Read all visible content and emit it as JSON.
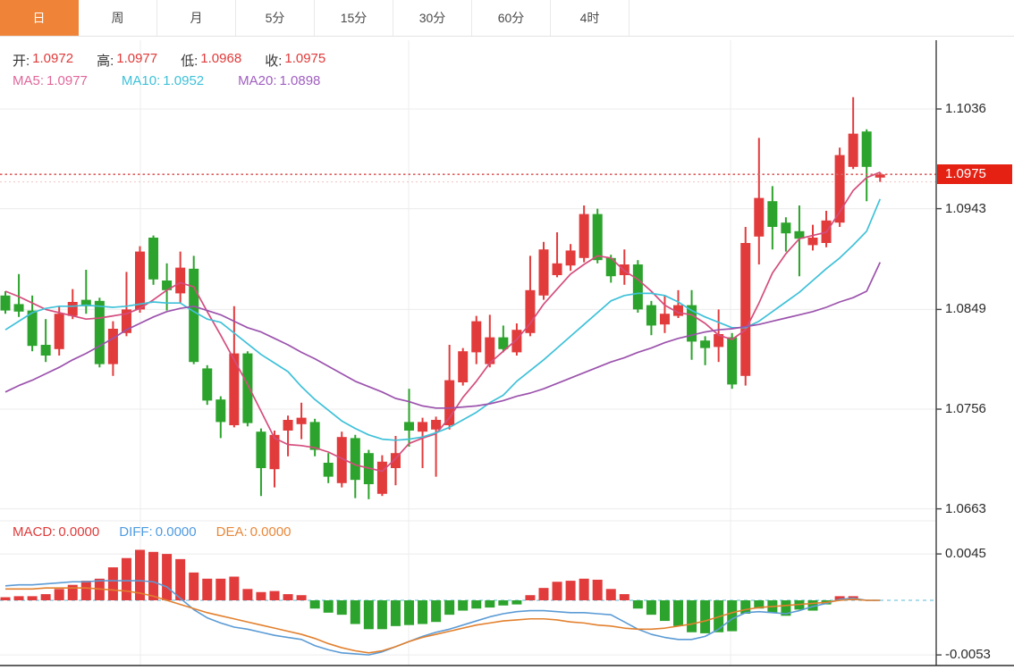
{
  "tabs": {
    "items": [
      {
        "label": "日",
        "active": true
      },
      {
        "label": "周",
        "active": false
      },
      {
        "label": "月",
        "active": false
      },
      {
        "label": "5分",
        "active": false
      },
      {
        "label": "15分",
        "active": false
      },
      {
        "label": "30分",
        "active": false
      },
      {
        "label": "60分",
        "active": false
      },
      {
        "label": "4时",
        "active": false
      }
    ],
    "active_bg": "#ef8438"
  },
  "legends": {
    "ohlc": {
      "label_color": "#333333",
      "value_color": "#e03a3a",
      "items": [
        {
          "label": "开:",
          "value": "1.0972"
        },
        {
          "label": "高:",
          "value": "1.0977"
        },
        {
          "label": "低:",
          "value": "1.0968"
        },
        {
          "label": "收:",
          "value": "1.0975"
        }
      ]
    },
    "ma": {
      "items": [
        {
          "label": "MA5:",
          "value": "1.0977",
          "color": "#e0679b"
        },
        {
          "label": "MA10:",
          "value": "1.0952",
          "color": "#3fc1d9"
        },
        {
          "label": "MA20:",
          "value": "1.0898",
          "color": "#a05fc0"
        }
      ]
    },
    "macd": {
      "items": [
        {
          "label": "MACD:",
          "value": "0.0000",
          "color": "#e03a3a"
        },
        {
          "label": "DIFF:",
          "value": "0.0000",
          "color": "#4f9be0"
        },
        {
          "label": "DEA:",
          "value": "0.0000",
          "color": "#e8883a"
        }
      ]
    }
  },
  "price_axis": {
    "ticks": [
      "1.1036",
      "1.0943",
      "1.0849",
      "1.0756",
      "1.0663"
    ],
    "tick_values": [
      1.1036,
      1.0943,
      1.0849,
      1.0756,
      1.0663
    ],
    "tag": {
      "text": "1.0975",
      "value": 1.0975,
      "bg": "#e42113",
      "fg": "#ffffff"
    }
  },
  "macd_axis": {
    "ticks": [
      "0.0045",
      "-0.0053"
    ],
    "tick_values": [
      0.0045,
      -0.0053
    ]
  },
  "colors": {
    "up": "#e23b3c",
    "down": "#2ca32c",
    "ma5": "#d44d7d",
    "ma10": "#3fc1d9",
    "ma20": "#9c53ad",
    "diff_line": "#5b9bd5",
    "dea_line": "#e2802e",
    "grid": "#ececec",
    "axis_line": "#3c3c3c",
    "zero_dash": "#8fd2e6",
    "last_price_line": "#dd6060"
  },
  "chart_data": [
    {
      "type": "candlestick",
      "panel": "price",
      "title": "",
      "ylabel": "",
      "ylim": [
        1.0655,
        1.11
      ],
      "y_ticks": [
        1.1036,
        1.0943,
        1.0849,
        1.0756,
        1.0663
      ],
      "vgrid_x": [
        157,
        457,
        817
      ],
      "reference_lines": [
        {
          "name": "last-price",
          "value": 1.0975,
          "style": "dotted",
          "color": "#dd6060"
        },
        {
          "name": "session-low",
          "value": 1.0968,
          "style": "dotted",
          "color": "#e89a9a"
        }
      ],
      "candles_ohlc": [
        [
          1.0862,
          1.0866,
          1.0845,
          1.0848
        ],
        [
          1.0854,
          1.0882,
          1.0842,
          1.0847
        ],
        [
          1.0848,
          1.0862,
          1.081,
          1.0815
        ],
        [
          1.0816,
          1.084,
          1.08,
          1.0806
        ],
        [
          1.0812,
          1.0852,
          1.0806,
          1.0845
        ],
        [
          1.0843,
          1.0868,
          1.084,
          1.0856
        ],
        [
          1.0858,
          1.0886,
          1.0845,
          1.0852
        ],
        [
          1.0857,
          1.086,
          1.0795,
          1.0798
        ],
        [
          1.0798,
          1.0838,
          1.0787,
          1.0831
        ],
        [
          1.0827,
          1.0884,
          1.0824,
          1.0849
        ],
        [
          1.0849,
          1.0908,
          1.0846,
          1.0903
        ],
        [
          1.0916,
          1.0918,
          1.0872,
          1.0877
        ],
        [
          1.0876,
          1.0892,
          1.0848,
          1.0867
        ],
        [
          1.0864,
          1.0903,
          1.0855,
          1.0888
        ],
        [
          1.0887,
          1.0899,
          1.0798,
          1.08
        ],
        [
          1.0794,
          1.0797,
          1.076,
          1.0764
        ],
        [
          1.0765,
          1.0768,
          1.0729,
          1.0744
        ],
        [
          1.0741,
          1.0852,
          1.0739,
          1.0808
        ],
        [
          1.0808,
          1.081,
          1.074,
          1.0743
        ],
        [
          1.0735,
          1.0738,
          1.0675,
          1.0701
        ],
        [
          1.07,
          1.0736,
          1.0683,
          1.0732
        ],
        [
          1.0736,
          1.075,
          1.0712,
          1.0746
        ],
        [
          1.0742,
          1.0762,
          1.0728,
          1.0748
        ],
        [
          1.0744,
          1.0747,
          1.0712,
          1.0718
        ],
        [
          1.0706,
          1.0715,
          1.0687,
          1.0693
        ],
        [
          1.0687,
          1.0735,
          1.0683,
          1.073
        ],
        [
          1.0729,
          1.0732,
          1.0673,
          1.069
        ],
        [
          1.0715,
          1.0718,
          1.0672,
          1.0686
        ],
        [
          1.0677,
          1.0713,
          1.0675,
          1.0707
        ],
        [
          1.0701,
          1.0731,
          1.0685,
          1.0715
        ],
        [
          1.0744,
          1.0775,
          1.0721,
          1.0736
        ],
        [
          1.0735,
          1.0748,
          1.0701,
          1.0744
        ],
        [
          1.0737,
          1.0749,
          1.0693,
          1.0746
        ],
        [
          1.0741,
          1.0816,
          1.0737,
          1.0783
        ],
        [
          1.0781,
          1.0813,
          1.0778,
          1.081
        ],
        [
          1.0809,
          1.0843,
          1.0798,
          1.0838
        ],
        [
          1.0798,
          1.0844,
          1.0795,
          1.0823
        ],
        [
          1.0823,
          1.0834,
          1.0809,
          1.0812
        ],
        [
          1.0809,
          1.0836,
          1.0806,
          1.083
        ],
        [
          1.0827,
          1.0899,
          1.0824,
          1.0867
        ],
        [
          1.0862,
          1.0912,
          1.0858,
          1.0905
        ],
        [
          1.0881,
          1.0921,
          1.0879,
          1.0892
        ],
        [
          1.089,
          1.091,
          1.0885,
          1.0904
        ],
        [
          1.0897,
          1.0946,
          1.0893,
          1.0938
        ],
        [
          1.0938,
          1.0943,
          1.0892,
          1.0895
        ],
        [
          1.0897,
          1.09,
          1.0874,
          1.088
        ],
        [
          1.0881,
          1.0905,
          1.0872,
          1.0891
        ],
        [
          1.0891,
          1.0895,
          1.0846,
          1.0849
        ],
        [
          1.0853,
          1.0857,
          1.0825,
          1.0834
        ],
        [
          1.0835,
          1.0862,
          1.0827,
          1.0845
        ],
        [
          1.0843,
          1.0867,
          1.0841,
          1.0853
        ],
        [
          1.0853,
          1.0867,
          1.0802,
          1.0819
        ],
        [
          1.082,
          1.0824,
          1.0797,
          1.0813
        ],
        [
          1.0814,
          1.0849,
          1.08,
          1.0826
        ],
        [
          1.0823,
          1.0827,
          1.0775,
          1.0779
        ],
        [
          1.0787,
          1.0926,
          1.0778,
          1.0911
        ],
        [
          1.0917,
          1.1009,
          1.0891,
          1.0953
        ],
        [
          1.095,
          1.0964,
          1.0905,
          1.0926
        ],
        [
          1.093,
          1.0935,
          1.0903,
          1.092
        ],
        [
          1.0922,
          1.0946,
          1.088,
          1.0915
        ],
        [
          1.0909,
          1.0928,
          1.0904,
          1.0916
        ],
        [
          1.0911,
          1.0941,
          1.0907,
          1.0932
        ],
        [
          1.093,
          1.1,
          1.0926,
          1.0993
        ],
        [
          1.0982,
          1.1047,
          1.098,
          1.1013
        ],
        [
          1.1015,
          1.1017,
          1.095,
          1.0982
        ],
        [
          1.0972,
          1.0977,
          1.0968,
          1.0975
        ]
      ],
      "series": [
        {
          "name": "MA5",
          "color": "#d44d7d",
          "values": [
            1.0866,
            1.0861,
            1.0855,
            1.0849,
            1.0846,
            1.0843,
            1.084,
            1.0841,
            1.0843,
            1.0845,
            1.085,
            1.0858,
            1.0867,
            1.0874,
            1.087,
            1.0847,
            1.0825,
            1.0802,
            1.0779,
            1.0754,
            1.0729,
            1.0723,
            1.0722,
            1.072,
            1.0716,
            1.071,
            1.0704,
            1.0701,
            1.0698,
            1.071,
            1.0724,
            1.0729,
            1.0733,
            1.0748,
            1.0767,
            1.0782,
            1.0799,
            1.081,
            1.0821,
            1.0836,
            1.0854,
            1.0868,
            1.0882,
            1.0891,
            1.0899,
            1.0897,
            1.0885,
            1.0877,
            1.0866,
            1.0853,
            1.0846,
            1.0844,
            1.0836,
            1.0825,
            1.0821,
            1.083,
            1.0855,
            1.0883,
            1.0901,
            1.0915,
            1.0918,
            1.0921,
            1.094,
            1.096,
            1.0972,
            1.0977
          ]
        },
        {
          "name": "MA10",
          "color": "#3fc1d9",
          "values": [
            1.083,
            1.0838,
            1.0846,
            1.085,
            1.0852,
            1.0852,
            1.0853,
            1.0852,
            1.0851,
            1.0852,
            1.0854,
            1.0856,
            1.0855,
            1.0855,
            1.0847,
            1.084,
            1.0837,
            1.0827,
            1.0817,
            1.0807,
            1.0799,
            1.0791,
            1.0777,
            1.0765,
            1.0755,
            1.0745,
            1.0738,
            1.0732,
            1.0728,
            1.0727,
            1.0728,
            1.073,
            1.0734,
            1.0739,
            1.0746,
            1.0753,
            1.0762,
            1.0769,
            1.0782,
            1.0792,
            1.0802,
            1.0813,
            1.0824,
            1.0835,
            1.0846,
            1.0857,
            1.0862,
            1.0864,
            1.0864,
            1.0862,
            1.0856,
            1.0848,
            1.0842,
            1.0837,
            1.0832,
            1.0832,
            1.0838,
            1.0847,
            1.0856,
            1.0865,
            1.0876,
            1.0887,
            1.0897,
            1.0909,
            1.0922,
            1.0952
          ]
        },
        {
          "name": "MA20",
          "color": "#9c53ad",
          "values": [
            1.0772,
            1.0778,
            1.0783,
            1.0789,
            1.0795,
            1.0802,
            1.0808,
            1.0815,
            1.0822,
            1.083,
            1.0836,
            1.0842,
            1.0847,
            1.085,
            1.0852,
            1.0848,
            1.0844,
            1.0838,
            1.0832,
            1.0828,
            1.0822,
            1.0816,
            1.0809,
            1.0803,
            1.0796,
            1.0789,
            1.0782,
            1.0777,
            1.0772,
            1.0766,
            1.0763,
            1.0759,
            1.0757,
            1.0757,
            1.0758,
            1.0759,
            1.0761,
            1.0764,
            1.0768,
            1.0771,
            1.0775,
            1.078,
            1.0785,
            1.079,
            1.0795,
            1.08,
            1.0804,
            1.0809,
            1.0813,
            1.0818,
            1.0822,
            1.0825,
            1.0828,
            1.083,
            1.0831,
            1.0833,
            1.0835,
            1.0838,
            1.0841,
            1.0844,
            1.0847,
            1.0851,
            1.0856,
            1.086,
            1.0866,
            1.0893
          ]
        }
      ]
    },
    {
      "type": "bar",
      "panel": "macd",
      "ylim": [
        -0.0064,
        0.0055
      ],
      "y_ticks": [
        0.0045,
        -0.0053
      ],
      "zero_line": 0,
      "vgrid_x": [
        157,
        457,
        817
      ],
      "histogram": [
        0.0003,
        0.0004,
        0.0004,
        0.0006,
        0.0011,
        0.0015,
        0.0019,
        0.0021,
        0.0032,
        0.0041,
        0.0049,
        0.0047,
        0.0045,
        0.004,
        0.0027,
        0.0021,
        0.0021,
        0.0023,
        0.0011,
        0.0008,
        0.0009,
        0.0006,
        0.0005,
        -0.0008,
        -0.0012,
        -0.0014,
        -0.0023,
        -0.0028,
        -0.0028,
        -0.0025,
        -0.0024,
        -0.0023,
        -0.0021,
        -0.0014,
        -0.001,
        -0.0008,
        -0.0007,
        -0.0005,
        -0.0004,
        0.0005,
        0.0012,
        0.0018,
        0.0019,
        0.0021,
        0.002,
        0.0011,
        0.0006,
        -0.0008,
        -0.0014,
        -0.002,
        -0.0025,
        -0.0031,
        -0.0032,
        -0.0031,
        -0.003,
        -0.0013,
        -0.0008,
        -0.0012,
        -0.0015,
        -0.0009,
        -0.001,
        -0.0004,
        0.0004,
        0.0004,
        0.0,
        0.0
      ],
      "series": [
        {
          "name": "DIFF",
          "color": "#5b9bd5",
          "values": [
            0.0014,
            0.0015,
            0.0015,
            0.0016,
            0.0017,
            0.0018,
            0.0018,
            0.0019,
            0.0019,
            0.0019,
            0.0019,
            0.0018,
            0.0013,
            0.0002,
            -0.0009,
            -0.0017,
            -0.0022,
            -0.0026,
            -0.0028,
            -0.0031,
            -0.0034,
            -0.0036,
            -0.0038,
            -0.0044,
            -0.0048,
            -0.0051,
            -0.0052,
            -0.0053,
            -0.005,
            -0.0045,
            -0.004,
            -0.0035,
            -0.0031,
            -0.0028,
            -0.0024,
            -0.002,
            -0.0016,
            -0.0013,
            -0.0011,
            -0.001,
            -0.001,
            -0.0011,
            -0.0012,
            -0.0012,
            -0.0013,
            -0.0014,
            -0.0021,
            -0.0028,
            -0.0033,
            -0.0036,
            -0.0038,
            -0.0038,
            -0.0035,
            -0.0028,
            -0.0018,
            -0.0012,
            -0.0011,
            -0.0012,
            -0.0013,
            -0.001,
            -0.0006,
            -0.0003,
            0.0001,
            0.0002,
            0.0,
            0.0
          ]
        },
        {
          "name": "DEA",
          "color": "#e2802e",
          "values": [
            0.0011,
            0.0011,
            0.0011,
            0.0012,
            0.0012,
            0.0012,
            0.0012,
            0.0011,
            0.001,
            0.0009,
            0.0007,
            0.0004,
            0.0,
            -0.0004,
            -0.0008,
            -0.0012,
            -0.0015,
            -0.0018,
            -0.0021,
            -0.0024,
            -0.0027,
            -0.003,
            -0.0033,
            -0.0037,
            -0.0042,
            -0.0046,
            -0.0049,
            -0.0051,
            -0.0049,
            -0.0045,
            -0.004,
            -0.0036,
            -0.0033,
            -0.003,
            -0.0027,
            -0.0024,
            -0.0022,
            -0.002,
            -0.0019,
            -0.0018,
            -0.0018,
            -0.0019,
            -0.0021,
            -0.0022,
            -0.0024,
            -0.0025,
            -0.0027,
            -0.0028,
            -0.0028,
            -0.0027,
            -0.0025,
            -0.0023,
            -0.002,
            -0.0016,
            -0.0012,
            -0.0009,
            -0.0007,
            -0.0006,
            -0.0005,
            -0.0004,
            -0.0003,
            -0.0002,
            0.0,
            0.0001,
            0.0,
            0.0
          ]
        }
      ]
    }
  ]
}
